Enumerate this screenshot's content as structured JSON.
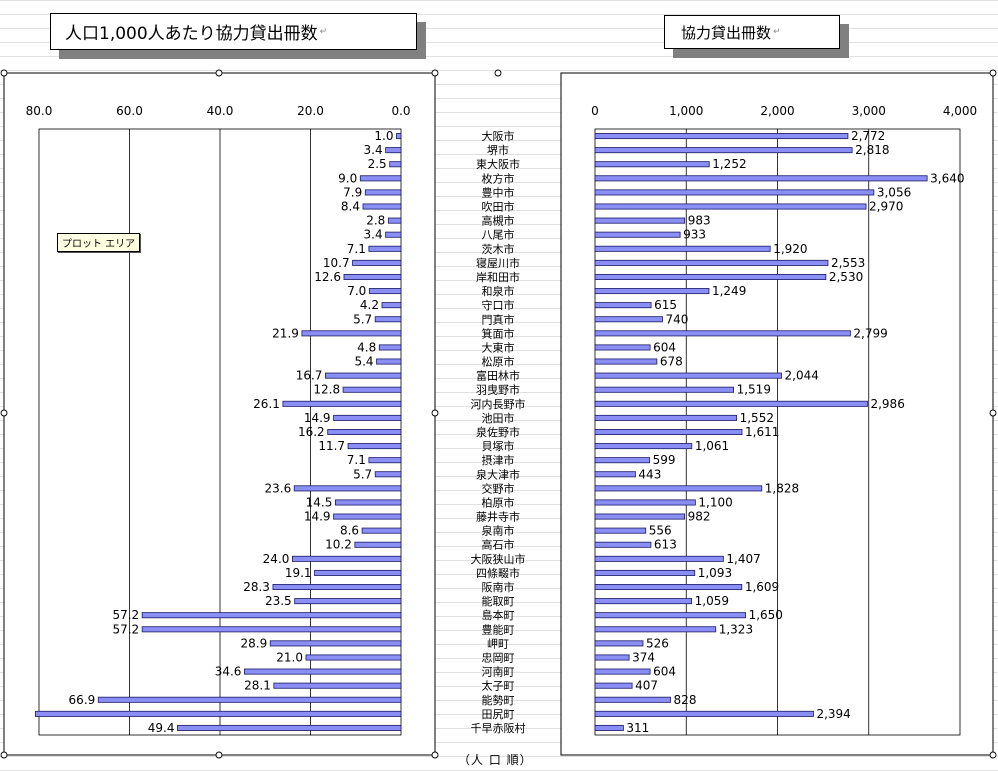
{
  "titles": {
    "left": "人口1,000人あたり協力貸出冊数",
    "right": "協力貸出冊数"
  },
  "tooltip": "プロット エリア",
  "footer_note": "（人 口 順）",
  "colors": {
    "bar_fill": "#8a8ef5",
    "bar_stroke": "#1a1a66"
  },
  "chart_data": [
    {
      "type": "bar",
      "orientation": "horizontal",
      "axis_reversed": true,
      "title": "人口1,000人あたり協力貸出冊数",
      "xlim": [
        0,
        80
      ],
      "ticks": [
        80,
        60,
        40,
        20,
        0
      ],
      "tick_labels": [
        "80.0",
        "60.0",
        "40.0",
        "20.0",
        "0.0"
      ],
      "categories": [
        "大阪市",
        "堺市",
        "東大阪市",
        "枚方市",
        "豊中市",
        "吹田市",
        "高槻市",
        "八尾市",
        "茨木市",
        "寝屋川市",
        "岸和田市",
        "和泉市",
        "守口市",
        "門真市",
        "箕面市",
        "大東市",
        "松原市",
        "富田林市",
        "羽曳野市",
        "河内長野市",
        "池田市",
        "泉佐野市",
        "貝塚市",
        "摂津市",
        "泉大津市",
        "交野市",
        "柏原市",
        "藤井寺市",
        "泉南市",
        "高石市",
        "大阪狭山市",
        "四條畷市",
        "阪南市",
        "能取町",
        "島本町",
        "豊能町",
        "岬町",
        "忠岡町",
        "河南町",
        "太子町",
        "能勢町",
        "田尻町",
        "千早赤阪村"
      ],
      "values": [
        1.0,
        3.4,
        2.5,
        9.0,
        7.9,
        8.4,
        2.8,
        3.4,
        7.1,
        10.7,
        12.6,
        7.0,
        4.2,
        5.7,
        21.9,
        4.8,
        5.4,
        16.7,
        12.8,
        26.1,
        14.9,
        16.2,
        11.7,
        7.1,
        5.7,
        23.6,
        14.5,
        14.9,
        8.6,
        10.2,
        24.0,
        19.1,
        28.3,
        23.5,
        57.2,
        57.2,
        28.9,
        21.0,
        34.6,
        28.1,
        66.9,
        82.0,
        49.4
      ],
      "value_labels": [
        "1.0",
        "3.4",
        "2.5",
        "9.0",
        "7.9",
        "8.4",
        "2.8",
        "3.4",
        "7.1",
        "10.7",
        "12.6",
        "7.0",
        "4.2",
        "5.7",
        "21.9",
        "4.8",
        "5.4",
        "16.7",
        "12.8",
        "26.1",
        "14.9",
        "16.2",
        "11.7",
        "7.1",
        "5.7",
        "23.6",
        "14.5",
        "14.9",
        "8.6",
        "10.2",
        "24.0",
        "19.1",
        "28.3",
        "23.5",
        "57.2",
        "57.2",
        "28.9",
        "21.0",
        "34.6",
        "28.1",
        "66.9",
        "",
        "49.4"
      ],
      "grid": true
    },
    {
      "type": "bar",
      "orientation": "horizontal",
      "title": "協力貸出冊数",
      "xlim": [
        0,
        4000
      ],
      "ticks": [
        0,
        1000,
        2000,
        3000,
        4000
      ],
      "tick_labels": [
        "0",
        "1,000",
        "2,000",
        "3,000",
        "4,000"
      ],
      "values": [
        2772,
        2818,
        1252,
        3640,
        3056,
        2970,
        983,
        933,
        1920,
        2553,
        2530,
        1249,
        615,
        740,
        2799,
        604,
        678,
        2044,
        1519,
        2986,
        1552,
        1611,
        1061,
        599,
        443,
        1828,
        1100,
        982,
        556,
        613,
        1407,
        1093,
        1609,
        1059,
        1650,
        1323,
        526,
        374,
        604,
        407,
        828,
        2394,
        311
      ],
      "value_labels": [
        "2,772",
        "2,818",
        "1,252",
        "3,640",
        "3,056",
        "2,970",
        "983",
        "933",
        "1,920",
        "2,553",
        "2,530",
        "1,249",
        "615",
        "740",
        "2,799",
        "604",
        "678",
        "2,044",
        "1,519",
        "2,986",
        "1,552",
        "1,611",
        "1,061",
        "599",
        "443",
        "1,828",
        "1,100",
        "982",
        "556",
        "613",
        "1,407",
        "1,093",
        "1,609",
        "1,059",
        "1,650",
        "1,323",
        "526",
        "374",
        "604",
        "407",
        "828",
        "2,394",
        "311"
      ],
      "grid": true
    }
  ]
}
